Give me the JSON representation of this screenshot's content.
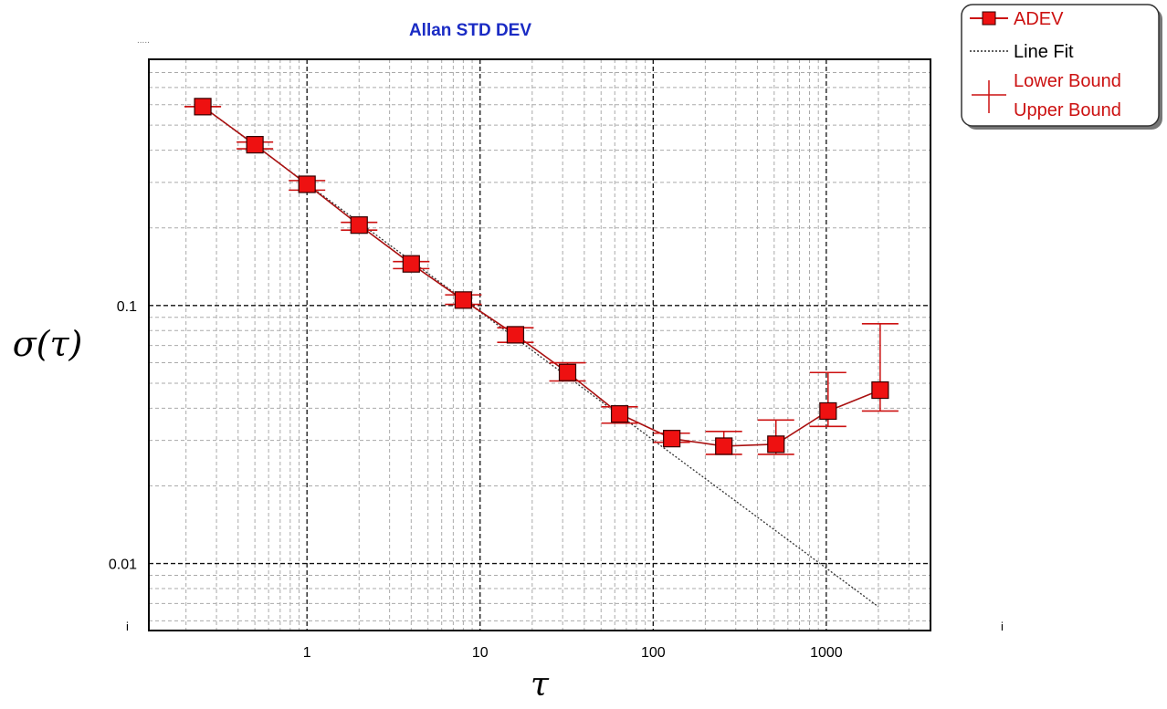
{
  "chart_data": {
    "type": "line",
    "title": "Allan STD DEV",
    "xlabel": "τ",
    "ylabel": "σ(τ)",
    "x_scale": "log",
    "y_scale": "log",
    "xlim": [
      0.122,
      4000
    ],
    "ylim": [
      0.0055,
      0.9
    ],
    "grid": true,
    "legend_position": "top-right, outside plot",
    "x_ticks": [
      {
        "value": 1,
        "label": "1"
      },
      {
        "value": 10,
        "label": "10"
      },
      {
        "value": 100,
        "label": "100"
      },
      {
        "value": 1000,
        "label": "1000"
      }
    ],
    "y_ticks": [
      {
        "value": 0.1,
        "label": "0.1"
      },
      {
        "value": 0.01,
        "label": "0.01"
      }
    ],
    "corner_marks": {
      "left": "i",
      "right": "i",
      "top": "....."
    },
    "series": [
      {
        "name": "ADEV",
        "color": "#ee1111",
        "line_color": "#aa1111",
        "marker": "square",
        "x": [
          0.25,
          0.5,
          1,
          2,
          4,
          8,
          16,
          32,
          64,
          128,
          256,
          512,
          1024,
          2048
        ],
        "values": [
          0.59,
          0.42,
          0.295,
          0.205,
          0.145,
          0.105,
          0.077,
          0.055,
          0.038,
          0.0305,
          0.0285,
          0.029,
          0.039,
          0.047
        ],
        "lower": [
          0.59,
          0.405,
          0.28,
          0.196,
          0.139,
          0.101,
          0.072,
          0.051,
          0.035,
          0.0295,
          0.0265,
          0.0265,
          0.034,
          0.039
        ],
        "upper": [
          0.59,
          0.43,
          0.305,
          0.21,
          0.148,
          0.11,
          0.082,
          0.06,
          0.0405,
          0.032,
          0.0325,
          0.036,
          0.055,
          0.085
        ]
      },
      {
        "name": "Line Fit",
        "color": "#333333",
        "style": "dotted",
        "x": [
          0.25,
          2000
        ],
        "values": [
          0.59,
          0.0068
        ]
      }
    ],
    "legend": [
      {
        "label": "ADEV",
        "color": "#cc1111"
      },
      {
        "label": "Line Fit",
        "color": "#000000"
      },
      {
        "label": "Lower Bound",
        "color": "#cc1111"
      },
      {
        "label": "Upper Bound",
        "color": "#cc1111"
      }
    ],
    "title_color": "#1a2bc4"
  }
}
